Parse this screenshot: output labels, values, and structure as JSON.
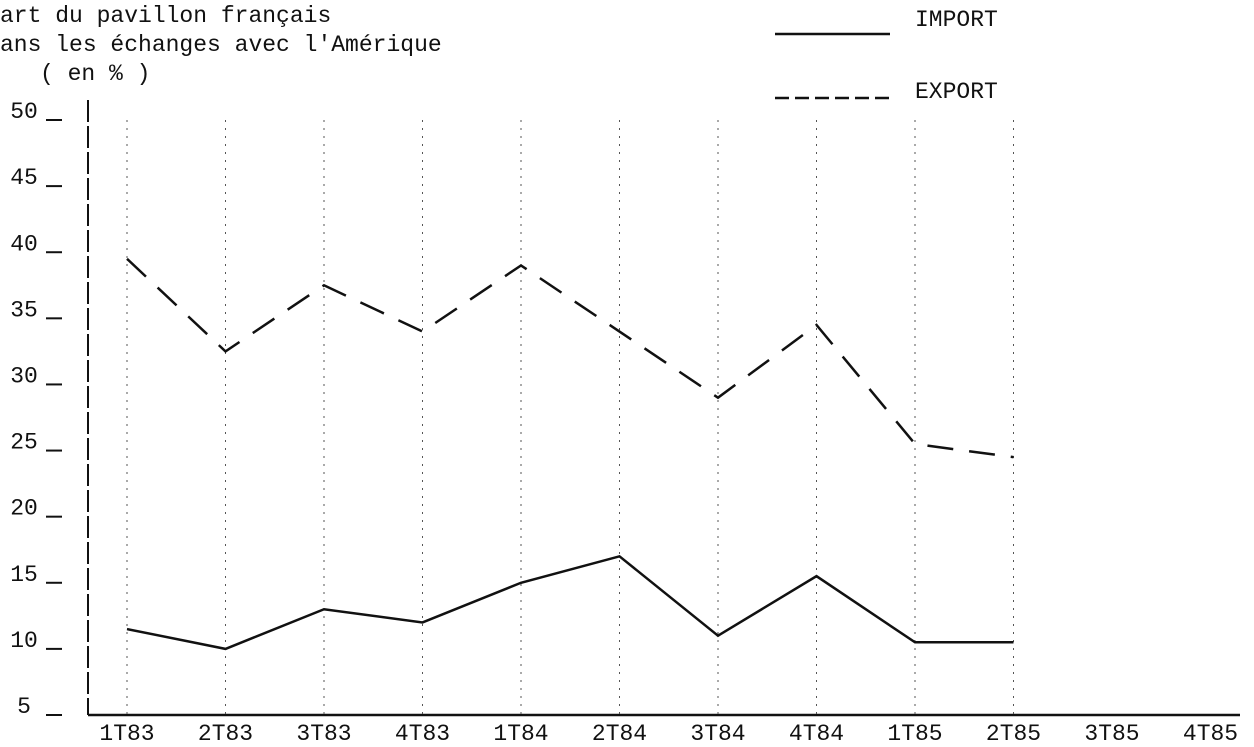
{
  "chart_data": {
    "type": "line",
    "title": [
      "art du pavillon français",
      "ans les échanges avec l'Amérique",
      "( en % )"
    ],
    "categories": [
      "1T83",
      "2T83",
      "3T83",
      "4T83",
      "1T84",
      "2T84",
      "3T84",
      "4T84",
      "1T85",
      "2T85",
      "3T85",
      "4T85"
    ],
    "series": [
      {
        "name": "IMPORT",
        "color": "#111111",
        "dash": false,
        "values": [
          11.5,
          10,
          13,
          12,
          15,
          17,
          11,
          15.5,
          10.5,
          10.5,
          null,
          null
        ]
      },
      {
        "name": "EXPORT",
        "color": "#111111",
        "dash": true,
        "values": [
          39.5,
          32.5,
          37.5,
          34,
          39,
          34,
          29,
          34.5,
          25.5,
          24.5,
          null,
          null
        ]
      }
    ],
    "ylim": [
      5,
      50
    ],
    "yticks": [
      5,
      10,
      15,
      20,
      25,
      30,
      35,
      40,
      45,
      50
    ],
    "grid": true,
    "legend": "top-right"
  }
}
